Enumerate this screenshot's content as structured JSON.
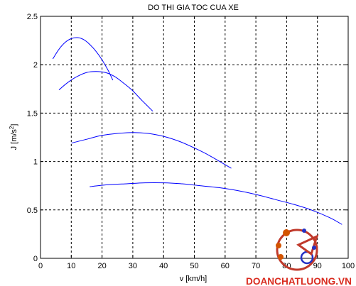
{
  "chart_data": {
    "type": "line",
    "title": "DO THI GIA TOC CUA XE",
    "xlabel": "v [km/h]",
    "ylabel_main": "J [m/s",
    "ylabel_sup": "2",
    "ylabel_end": "]",
    "xlim": [
      0,
      100
    ],
    "ylim": [
      0,
      2.5
    ],
    "xticks": [
      0,
      10,
      20,
      30,
      40,
      50,
      60,
      70,
      80,
      90,
      100
    ],
    "yticks": [
      0,
      0.5,
      1,
      1.5,
      2,
      2.5
    ],
    "ytick_labels": [
      "0",
      "0.5",
      "1",
      "1.5",
      "2",
      "2.5"
    ],
    "grid": true,
    "line_color": "#0000ff",
    "series": [
      {
        "x": [
          4,
          6,
          8,
          10,
          12,
          14,
          16,
          18,
          20,
          22,
          23.5
        ],
        "y": [
          2.06,
          2.16,
          2.23,
          2.27,
          2.28,
          2.26,
          2.21,
          2.14,
          2.05,
          1.94,
          1.84
        ]
      },
      {
        "x": [
          6,
          9,
          12,
          15,
          18,
          21,
          24,
          27,
          30,
          33,
          36.5
        ],
        "y": [
          1.74,
          1.82,
          1.88,
          1.92,
          1.93,
          1.92,
          1.88,
          1.81,
          1.73,
          1.63,
          1.52
        ]
      },
      {
        "x": [
          10,
          15,
          20,
          25,
          30,
          35,
          40,
          45,
          50,
          55,
          62
        ],
        "y": [
          1.19,
          1.23,
          1.27,
          1.29,
          1.3,
          1.29,
          1.26,
          1.21,
          1.14,
          1.06,
          0.93
        ]
      },
      {
        "x": [
          16,
          22,
          28,
          34,
          40,
          46,
          52,
          58,
          64,
          70,
          76,
          82,
          88,
          94,
          98
        ],
        "y": [
          0.74,
          0.76,
          0.77,
          0.78,
          0.78,
          0.77,
          0.75,
          0.73,
          0.7,
          0.66,
          0.61,
          0.56,
          0.5,
          0.42,
          0.35
        ]
      }
    ]
  },
  "watermark": {
    "text": "DOANCHATLUONG.VN",
    "color": "#d92b1f"
  }
}
